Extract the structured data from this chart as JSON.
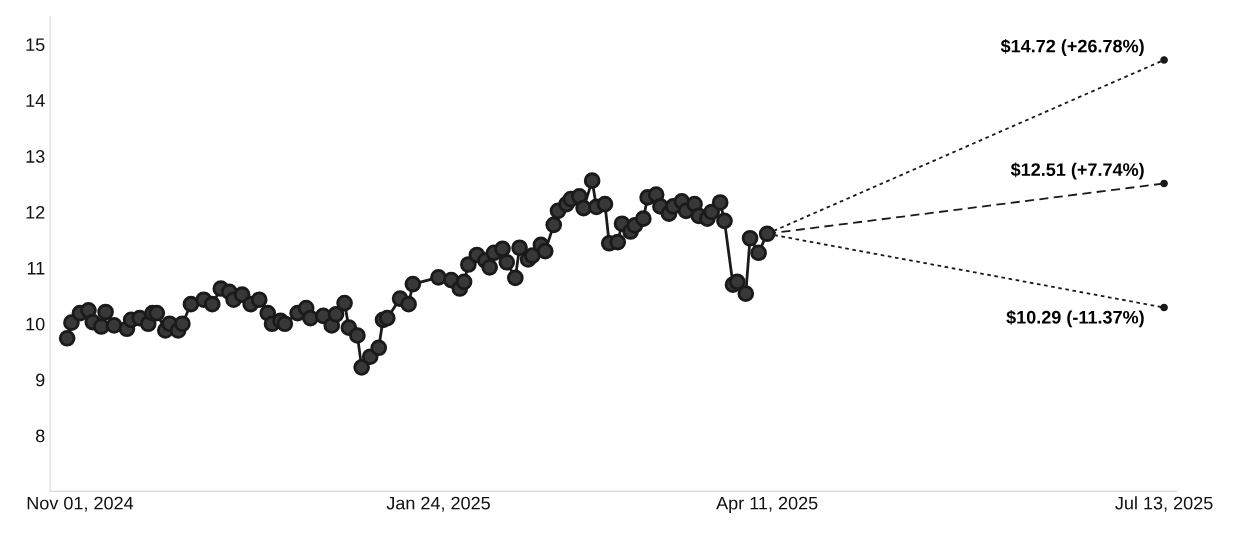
{
  "chart_data": {
    "type": "line",
    "xticks": [
      {
        "value": "2024-11-01",
        "label": "Nov 01, 2024"
      },
      {
        "value": "2025-01-24",
        "label": "Jan 24, 2025"
      },
      {
        "value": "2025-04-11",
        "label": "Apr 11, 2025"
      },
      {
        "value": "2025-07-13",
        "label": "Jul 13, 2025"
      }
    ],
    "xlim": [
      "2024-10-25",
      "2025-07-16"
    ],
    "ylim": [
      7,
      15.5
    ],
    "yticks": [
      8,
      9,
      10,
      11,
      12,
      13,
      14,
      15
    ],
    "grid": false,
    "series": [
      {
        "color": "#1a1a1a",
        "marker": "circle",
        "line_style": "solid",
        "x": [
          "2024-10-29",
          "2024-10-30",
          "2024-11-01",
          "2024-11-03",
          "2024-11-04",
          "2024-11-06",
          "2024-11-07",
          "2024-11-09",
          "2024-11-12",
          "2024-11-13",
          "2024-11-15",
          "2024-11-17",
          "2024-11-18",
          "2024-11-19",
          "2024-11-21",
          "2024-11-22",
          "2024-11-24",
          "2024-11-25",
          "2024-11-27",
          "2024-11-30",
          "2024-12-02",
          "2024-12-04",
          "2024-12-06",
          "2024-12-07",
          "2024-12-09",
          "2024-12-11",
          "2024-12-13",
          "2024-12-15",
          "2024-12-16",
          "2024-12-18",
          "2024-12-19",
          "2024-12-22",
          "2024-12-24",
          "2024-12-25",
          "2024-12-28",
          "2024-12-30",
          "2024-12-31",
          "2025-01-02",
          "2025-01-03",
          "2025-01-05",
          "2025-01-06",
          "2025-01-08",
          "2025-01-10",
          "2025-01-11",
          "2025-01-12",
          "2025-01-15",
          "2025-01-17",
          "2025-01-18",
          "2025-01-24",
          "2025-01-27",
          "2025-01-29",
          "2025-01-30",
          "2025-01-31",
          "2025-02-02",
          "2025-02-04",
          "2025-02-05",
          "2025-02-06",
          "2025-02-08",
          "2025-02-09",
          "2025-02-11",
          "2025-02-12",
          "2025-02-14",
          "2025-02-15",
          "2025-02-17",
          "2025-02-18",
          "2025-02-20",
          "2025-02-21",
          "2025-02-23",
          "2025-02-24",
          "2025-02-26",
          "2025-02-27",
          "2025-03-01",
          "2025-03-02",
          "2025-03-04",
          "2025-03-05",
          "2025-03-07",
          "2025-03-08",
          "2025-03-10",
          "2025-03-11",
          "2025-03-13",
          "2025-03-14",
          "2025-03-16",
          "2025-03-17",
          "2025-03-19",
          "2025-03-20",
          "2025-03-22",
          "2025-03-23",
          "2025-03-25",
          "2025-03-26",
          "2025-03-28",
          "2025-03-29",
          "2025-03-31",
          "2025-04-01",
          "2025-04-03",
          "2025-04-04",
          "2025-04-06",
          "2025-04-07",
          "2025-04-09",
          "2025-04-11"
        ],
        "values": [
          9.74,
          10.02,
          10.19,
          10.24,
          10.03,
          9.95,
          10.21,
          9.97,
          9.91,
          10.07,
          10.1,
          10.0,
          10.19,
          10.19,
          9.88,
          10.0,
          9.88,
          10.0,
          10.35,
          10.43,
          10.35,
          10.63,
          10.57,
          10.43,
          10.52,
          10.35,
          10.43,
          10.19,
          10.0,
          10.05,
          10.0,
          10.19,
          10.28,
          10.1,
          10.14,
          9.97,
          10.17,
          10.37,
          9.93,
          9.79,
          9.22,
          9.41,
          9.57,
          10.07,
          10.1,
          10.45,
          10.35,
          10.71,
          10.83,
          10.78,
          10.63,
          10.75,
          11.06,
          11.23,
          11.13,
          11.01,
          11.27,
          11.34,
          11.1,
          10.82,
          11.36,
          11.15,
          11.22,
          11.41,
          11.3,
          11.77,
          12.02,
          12.14,
          12.23,
          12.28,
          12.07,
          12.56,
          12.09,
          12.14,
          11.44,
          11.46,
          11.79,
          11.65,
          11.76,
          11.88,
          12.26,
          12.31,
          12.1,
          11.97,
          12.1,
          12.19,
          12.02,
          12.14,
          11.93,
          11.88,
          12.0,
          12.17,
          11.84,
          10.7,
          10.75,
          10.54,
          11.53,
          11.27,
          11.61
        ]
      },
      {
        "color": "#1a1a1a",
        "marker": "circle",
        "line_style": "dotted",
        "x": [
          "2025-04-11",
          "2025-07-13"
        ],
        "values": [
          11.61,
          14.72
        ]
      },
      {
        "color": "#1a1a1a",
        "marker": "circle",
        "line_style": "dashed",
        "x": [
          "2025-04-11",
          "2025-07-13"
        ],
        "values": [
          11.61,
          12.51
        ]
      },
      {
        "color": "#1a1a1a",
        "marker": "circle",
        "line_style": "dotted",
        "x": [
          "2025-04-11",
          "2025-07-13"
        ],
        "values": [
          11.61,
          10.29
        ]
      }
    ],
    "annotations": [
      {
        "text": "$14.72 (+26.78%)",
        "x": "2025-07-13",
        "y": 14.72
      },
      {
        "text": "$12.51 (+7.74%)",
        "x": "2025-07-13",
        "y": 12.51
      },
      {
        "text": "$10.29 (-11.37%)",
        "x": "2025-07-13",
        "y": 10.29
      }
    ]
  }
}
